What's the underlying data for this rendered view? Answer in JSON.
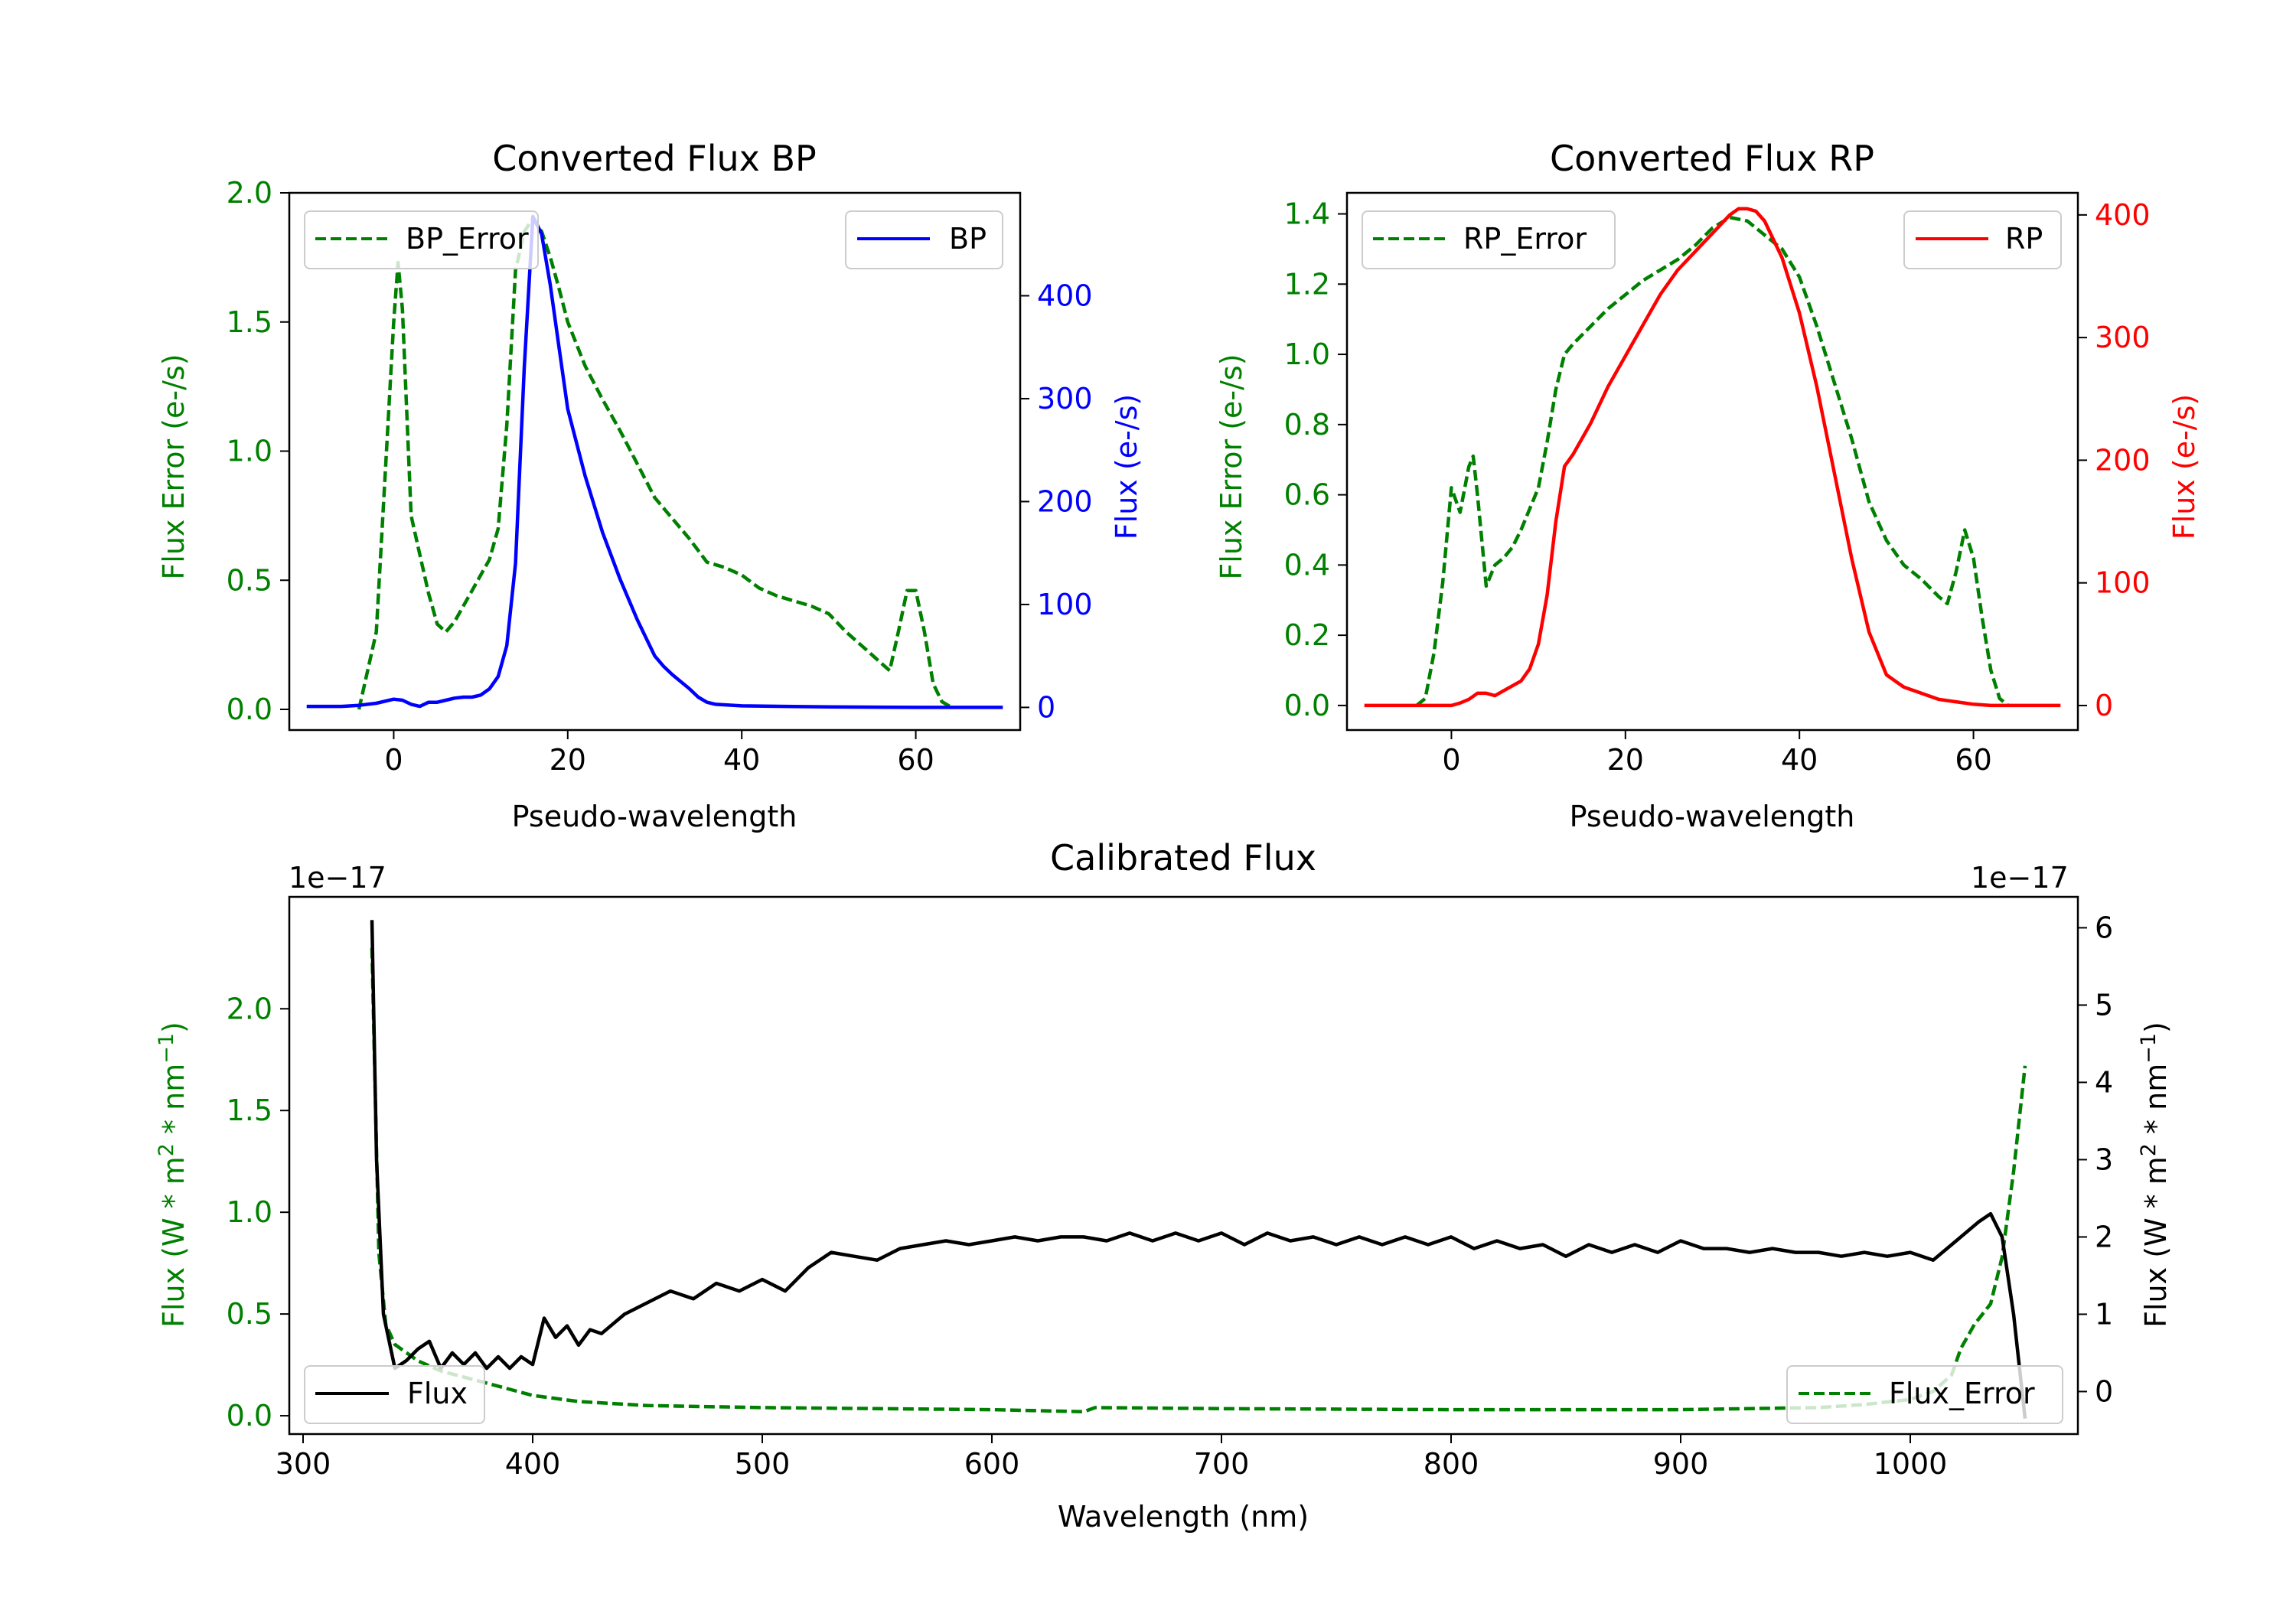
{
  "colors": {
    "error": "#008000",
    "bp": "#0000ff",
    "rp": "#ff0000",
    "flux": "#000000",
    "axis": "#000000",
    "legend_border": "#cccccc"
  },
  "chart_data": [
    {
      "type": "line",
      "title": "Converted Flux BP",
      "xlabel": "Pseudo-wavelength",
      "xlim": [
        -12,
        72
      ],
      "x_ticks": [
        0,
        20,
        40,
        60
      ],
      "left_axis": {
        "label": "Flux Error (e-/s)",
        "lim": [
          -0.08,
          2.0
        ],
        "ticks": [
          0.0,
          0.5,
          1.0,
          1.5,
          2.0
        ],
        "tick_labels": [
          "0.0",
          "0.5",
          "1.0",
          "1.5",
          "2.0"
        ]
      },
      "right_axis": {
        "label": "Flux (e-/s)",
        "lim": [
          -22,
          500
        ],
        "ticks": [
          0,
          100,
          200,
          300,
          400
        ],
        "tick_labels": [
          "0",
          "100",
          "200",
          "300",
          "400"
        ]
      },
      "series": [
        {
          "name": "BP_Error",
          "axis": "left",
          "style": "dashed",
          "color_key": "error",
          "x": [
            -4,
            -2,
            -1,
            0,
            0.5,
            1,
            2,
            3,
            4,
            5,
            6,
            7,
            8,
            9,
            10,
            11,
            12,
            13,
            14,
            15,
            16,
            17,
            18,
            19,
            20,
            22,
            24,
            26,
            28,
            30,
            32,
            34,
            36,
            38,
            40,
            42,
            44,
            46,
            48,
            50,
            52,
            54,
            56,
            57,
            58,
            59,
            60,
            61,
            62,
            63,
            64
          ],
          "y": [
            0.0,
            0.3,
            0.9,
            1.5,
            1.73,
            1.55,
            0.75,
            0.6,
            0.45,
            0.33,
            0.3,
            0.34,
            0.4,
            0.46,
            0.52,
            0.58,
            0.7,
            1.1,
            1.7,
            1.85,
            1.9,
            1.85,
            1.75,
            1.63,
            1.5,
            1.33,
            1.2,
            1.08,
            0.95,
            0.82,
            0.74,
            0.66,
            0.57,
            0.55,
            0.52,
            0.47,
            0.44,
            0.42,
            0.4,
            0.37,
            0.3,
            0.24,
            0.18,
            0.15,
            0.3,
            0.46,
            0.46,
            0.3,
            0.1,
            0.03,
            0.01
          ]
        },
        {
          "name": "BP",
          "axis": "right",
          "style": "solid",
          "color_key": "bp",
          "x": [
            -10,
            -6,
            -4,
            -2,
            0,
            1,
            2,
            3,
            4,
            5,
            6,
            7,
            8,
            9,
            10,
            11,
            12,
            13,
            14,
            15,
            16,
            17,
            18,
            19,
            20,
            22,
            24,
            26,
            28,
            30,
            31,
            32,
            33,
            34,
            35,
            36,
            37,
            40,
            45,
            50,
            60,
            70
          ],
          "y": [
            1,
            1,
            2,
            4,
            8,
            7,
            3,
            1,
            5,
            5,
            7,
            9,
            10,
            10,
            12,
            18,
            30,
            60,
            140,
            330,
            477,
            460,
            410,
            350,
            290,
            225,
            170,
            125,
            85,
            50,
            40,
            32,
            25,
            18,
            10,
            5,
            3,
            1.5,
            1,
            0.5,
            0,
            0
          ]
        }
      ],
      "legends": [
        {
          "entries": [
            "BP_Error"
          ],
          "loc": "upper left"
        },
        {
          "entries": [
            "BP"
          ],
          "loc": "upper right"
        }
      ]
    },
    {
      "type": "line",
      "title": "Converted Flux RP",
      "xlabel": "Pseudo-wavelength",
      "xlim": [
        -12,
        72
      ],
      "x_ticks": [
        0,
        20,
        40,
        60
      ],
      "left_axis": {
        "label": "Flux Error (e-/s)",
        "lim": [
          -0.07,
          1.46
        ],
        "ticks": [
          0.0,
          0.2,
          0.4,
          0.6,
          0.8,
          1.0,
          1.2,
          1.4
        ],
        "tick_labels": [
          "0.0",
          "0.2",
          "0.4",
          "0.6",
          "0.8",
          "1.0",
          "1.2",
          "1.4"
        ]
      },
      "right_axis": {
        "label": "Flux (e-/s)",
        "lim": [
          -20,
          418
        ],
        "ticks": [
          0,
          100,
          200,
          300,
          400
        ],
        "tick_labels": [
          "0",
          "100",
          "200",
          "300",
          "400"
        ]
      },
      "series": [
        {
          "name": "RP_Error",
          "axis": "left",
          "style": "dashed",
          "color_key": "error",
          "x": [
            -4,
            -3,
            -2,
            -1,
            0,
            1,
            2,
            2.5,
            3,
            4,
            5,
            6,
            7,
            8,
            9,
            10,
            11,
            12,
            13,
            14,
            16,
            18,
            20,
            22,
            24,
            26,
            28,
            30,
            32,
            34,
            36,
            38,
            40,
            42,
            44,
            46,
            48,
            50,
            52,
            54,
            56,
            57,
            58,
            59,
            60,
            61,
            62,
            63,
            64
          ],
          "y": [
            0.0,
            0.02,
            0.15,
            0.35,
            0.62,
            0.55,
            0.68,
            0.71,
            0.6,
            0.34,
            0.4,
            0.42,
            0.45,
            0.5,
            0.56,
            0.62,
            0.75,
            0.9,
            1.0,
            1.03,
            1.08,
            1.13,
            1.17,
            1.21,
            1.24,
            1.27,
            1.31,
            1.36,
            1.39,
            1.38,
            1.34,
            1.3,
            1.22,
            1.08,
            0.92,
            0.76,
            0.58,
            0.47,
            0.4,
            0.36,
            0.31,
            0.29,
            0.38,
            0.5,
            0.42,
            0.25,
            0.1,
            0.02,
            0.0
          ]
        },
        {
          "name": "RP",
          "axis": "right",
          "style": "solid",
          "color_key": "rp",
          "x": [
            -10,
            -4,
            0,
            1,
            2,
            3,
            4,
            5,
            6,
            7,
            8,
            9,
            10,
            11,
            12,
            13,
            14,
            16,
            18,
            20,
            22,
            24,
            26,
            28,
            30,
            32,
            33,
            34,
            35,
            36,
            37,
            38,
            40,
            42,
            44,
            46,
            48,
            50,
            52,
            54,
            56,
            58,
            60,
            62,
            64,
            70
          ],
          "y": [
            0,
            0,
            0,
            2,
            5,
            10,
            10,
            8,
            12,
            16,
            20,
            30,
            50,
            90,
            150,
            195,
            205,
            230,
            260,
            285,
            310,
            335,
            355,
            370,
            385,
            400,
            405,
            405,
            403,
            395,
            380,
            365,
            320,
            260,
            190,
            120,
            60,
            25,
            15,
            10,
            5,
            3,
            1,
            0,
            0,
            0
          ]
        }
      ],
      "legends": [
        {
          "entries": [
            "RP_Error"
          ],
          "loc": "upper left"
        },
        {
          "entries": [
            "RP"
          ],
          "loc": "upper right"
        }
      ]
    },
    {
      "type": "line",
      "title": "Calibrated Flux",
      "xlabel": "Wavelength (nm)",
      "xlim": [
        294,
        1073
      ],
      "x_ticks": [
        300,
        400,
        500,
        600,
        700,
        800,
        900,
        1000
      ],
      "left_axis": {
        "label": "Flux (W * m^2 * nm^-1)",
        "label_parts": [
          "Flux (W * m",
          "2",
          " * nm",
          "−1",
          ")"
        ],
        "offset_text": "1e−17",
        "lim": [
          -0.09,
          2.55
        ],
        "ticks": [
          0.0,
          0.5,
          1.0,
          1.5,
          2.0
        ],
        "tick_labels": [
          "0.0",
          "0.5",
          "1.0",
          "1.5",
          "2.0"
        ]
      },
      "right_axis": {
        "label": "Flux (W * m^2 * nm^-1)",
        "label_parts": [
          "Flux (W * m",
          "2",
          " * nm",
          "−1",
          ")"
        ],
        "offset_text": "1e−17",
        "lim": [
          -0.55,
          6.4
        ],
        "ticks": [
          0,
          1,
          2,
          3,
          4,
          5,
          6
        ],
        "tick_labels": [
          "0",
          "1",
          "2",
          "3",
          "4",
          "5",
          "6"
        ]
      },
      "series": [
        {
          "name": "Flux_Error",
          "axis": "left",
          "style": "dashed",
          "color_key": "error",
          "x": [
            330,
            333,
            336,
            340,
            350,
            360,
            380,
            400,
            420,
            450,
            500,
            550,
            600,
            640,
            645,
            700,
            800,
            900,
            960,
            980,
            1000,
            1010,
            1018,
            1022,
            1028,
            1035,
            1040,
            1045,
            1050
          ],
          "y": [
            2.3,
            0.8,
            0.45,
            0.35,
            0.27,
            0.22,
            0.16,
            0.1,
            0.07,
            0.05,
            0.04,
            0.035,
            0.03,
            0.02,
            0.04,
            0.035,
            0.03,
            0.03,
            0.04,
            0.055,
            0.08,
            0.12,
            0.2,
            0.33,
            0.45,
            0.55,
            0.78,
            1.2,
            1.72
          ]
        },
        {
          "name": "Flux",
          "axis": "right",
          "style": "solid",
          "color_key": "flux",
          "x": [
            330,
            332,
            335,
            340,
            345,
            350,
            355,
            360,
            365,
            370,
            375,
            380,
            385,
            390,
            395,
            400,
            405,
            410,
            415,
            420,
            425,
            430,
            440,
            450,
            460,
            470,
            480,
            490,
            500,
            510,
            520,
            530,
            540,
            550,
            560,
            570,
            580,
            590,
            600,
            610,
            620,
            630,
            640,
            650,
            660,
            670,
            680,
            690,
            700,
            710,
            720,
            730,
            740,
            750,
            760,
            770,
            780,
            790,
            800,
            810,
            820,
            830,
            840,
            850,
            860,
            870,
            880,
            890,
            900,
            910,
            920,
            930,
            940,
            950,
            960,
            970,
            980,
            990,
            1000,
            1010,
            1020,
            1030,
            1035,
            1040,
            1045,
            1050
          ],
          "y": [
            6.1,
            3.0,
            1.0,
            0.3,
            0.4,
            0.55,
            0.65,
            0.3,
            0.5,
            0.35,
            0.5,
            0.3,
            0.45,
            0.3,
            0.45,
            0.35,
            0.95,
            0.7,
            0.85,
            0.6,
            0.8,
            0.75,
            1.0,
            1.15,
            1.3,
            1.2,
            1.4,
            1.3,
            1.45,
            1.3,
            1.6,
            1.8,
            1.75,
            1.7,
            1.85,
            1.9,
            1.95,
            1.9,
            1.95,
            2.0,
            1.95,
            2.0,
            2.0,
            1.95,
            2.05,
            1.95,
            2.05,
            1.95,
            2.05,
            1.9,
            2.05,
            1.95,
            2.0,
            1.9,
            2.0,
            1.9,
            2.0,
            1.9,
            2.0,
            1.85,
            1.95,
            1.85,
            1.9,
            1.75,
            1.9,
            1.8,
            1.9,
            1.8,
            1.95,
            1.85,
            1.85,
            1.8,
            1.85,
            1.8,
            1.8,
            1.75,
            1.8,
            1.75,
            1.8,
            1.7,
            1.95,
            2.2,
            2.3,
            2.0,
            1.0,
            -0.35
          ]
        }
      ],
      "legends": [
        {
          "entries": [
            "Flux"
          ],
          "loc": "lower left"
        },
        {
          "entries": [
            "Flux_Error"
          ],
          "loc": "lower right"
        }
      ]
    }
  ]
}
